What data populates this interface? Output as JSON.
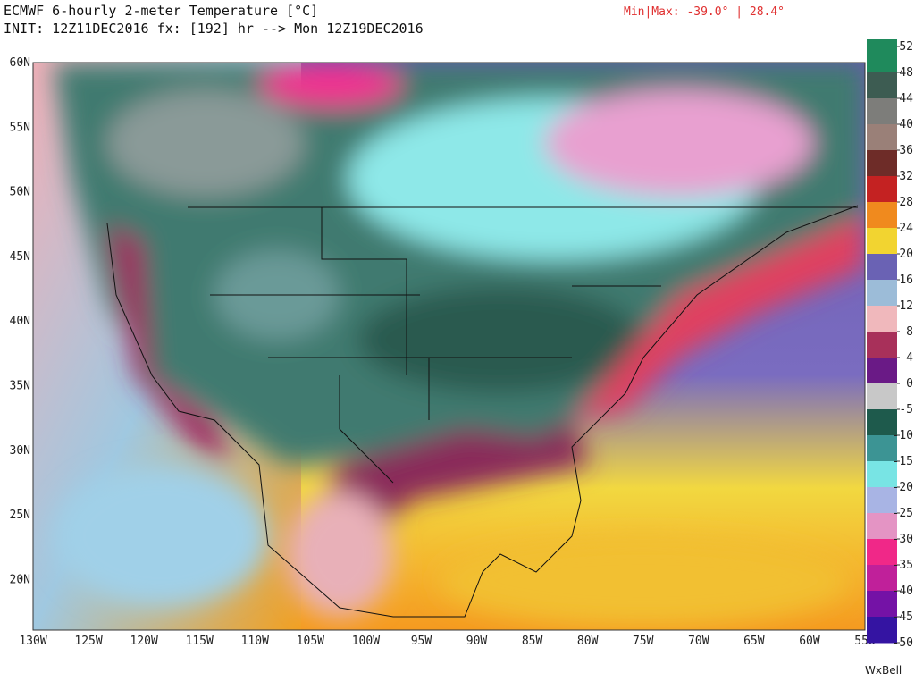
{
  "header": {
    "title": "ECMWF 6-hourly 2-meter Temperature [°C]",
    "init": "INIT: 12Z11DEC2016 fx: [192] hr --> Mon 12Z19DEC2016",
    "minmax": "Min|Max: -39.0° | 28.4°"
  },
  "map": {
    "lat_labels": [
      "60N",
      "55N",
      "50N",
      "45N",
      "40N",
      "35N",
      "30N",
      "25N",
      "20N"
    ],
    "lon_labels": [
      "130W",
      "125W",
      "120W",
      "115W",
      "110W",
      "105W",
      "100W",
      "95W",
      "90W",
      "85W",
      "80W",
      "75W",
      "70W",
      "65W",
      "60W",
      "55W"
    ]
  },
  "colorbar": {
    "ticks": [
      52,
      48,
      44,
      40,
      36,
      32,
      28,
      24,
      20,
      16,
      12,
      8,
      4,
      0,
      -5,
      -10,
      -15,
      -20,
      -25,
      -30,
      -35,
      -40,
      -45,
      -50
    ],
    "colors": [
      "#1f8a5c",
      "#3d5c52",
      "#7d7d7a",
      "#9a8078",
      "#6e2c28",
      "#c42222",
      "#f08a1e",
      "#f2d430",
      "#6a62b4",
      "#9cbcd8",
      "#f0b8bc",
      "#a8305a",
      "#6a1a86",
      "#c8c8c8",
      "#1e5a4c",
      "#3c9494",
      "#78e4e4",
      "#a8b4e4",
      "#e494c4",
      "#f02888",
      "#c0209a",
      "#7412a6",
      "#3414a2"
    ]
  },
  "footer": {
    "brand": "WxBell"
  }
}
